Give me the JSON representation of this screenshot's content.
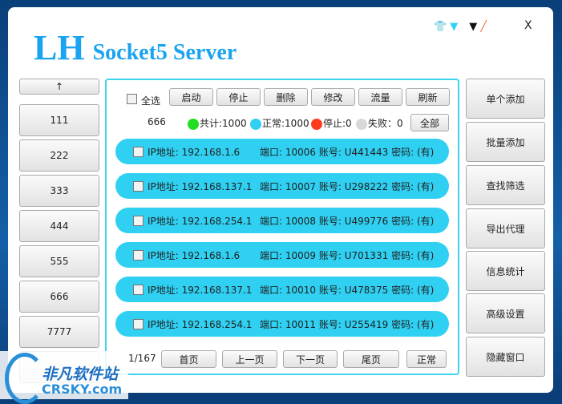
{
  "title": {
    "big": "LH",
    "small": "Socket5 Server"
  },
  "close_label": "X",
  "left_buttons": [
    "↑",
    "111",
    "222",
    "333",
    "444",
    "555",
    "666",
    "7777"
  ],
  "toolbar": {
    "select_all": "全选",
    "buttons": [
      "启动",
      "停止",
      "删除",
      "修改",
      "流量",
      "刷新"
    ]
  },
  "stats": {
    "current": "666",
    "total": "共计:1000",
    "normal": "正常:1000",
    "stopped": "停止:0",
    "failed": "失败：0",
    "all_button": "全部"
  },
  "colors": {
    "total": "#22dd22",
    "normal": "#2fd0f2",
    "stopped": "#ff3b1f",
    "failed": "#d8d8d8"
  },
  "rows": [
    {
      "ip": "IP地址: 192.168.1.6",
      "info": "端口: 10006 账号: U441443 密码: (有)"
    },
    {
      "ip": "IP地址: 192.168.137.1",
      "info": "端口: 10007 账号: U298222 密码: (有)"
    },
    {
      "ip": "IP地址: 192.168.254.1",
      "info": "端口: 10008 账号: U499776 密码: (有)"
    },
    {
      "ip": "IP地址: 192.168.1.6",
      "info": "端口: 10009 账号: U701331 密码: (有)"
    },
    {
      "ip": "IP地址: 192.168.137.1",
      "info": "端口: 10010 账号: U478375 密码: (有)"
    },
    {
      "ip": "IP地址: 192.168.254.1",
      "info": "端口: 10011 账号: U255419 密码: (有)"
    }
  ],
  "pager": {
    "page": "1/167",
    "buttons": [
      "首页",
      "上一页",
      "下一页",
      "尾页",
      "正常"
    ]
  },
  "right_buttons": [
    "单个添加",
    "批量添加",
    "查找筛选",
    "导出代理",
    "信息统计",
    "高级设置",
    "隐藏窗口"
  ],
  "watermark": {
    "cn": "非凡软件站",
    "en": "CRSKY.com"
  }
}
